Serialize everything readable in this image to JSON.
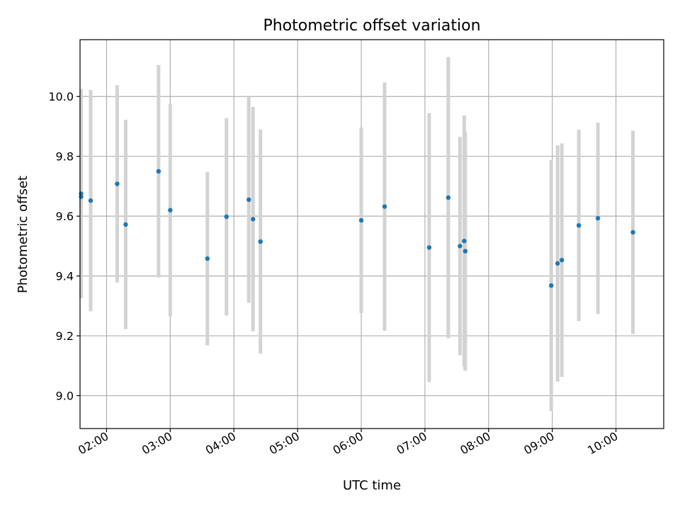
{
  "chart_data": {
    "type": "scatter",
    "title": "Photometric offset variation",
    "xlabel": "UTC time",
    "ylabel": "Photometric offset",
    "x_format": "HH:MM",
    "xlim": [
      "01:35",
      "10:45"
    ],
    "ylim": [
      8.89,
      10.19
    ],
    "x_ticks": [
      "02:00",
      "03:00",
      "04:00",
      "05:00",
      "06:00",
      "07:00",
      "08:00",
      "09:00",
      "10:00"
    ],
    "y_ticks": [
      "9.0",
      "9.2",
      "9.4",
      "9.6",
      "9.8",
      "10.0"
    ],
    "grid": true,
    "marker_color": "#1f77b4",
    "errorbar_color": "#d3d3d3",
    "points": [
      {
        "x": "01:36",
        "y": 9.675,
        "err": 0.35
      },
      {
        "x": "01:36",
        "y": 9.665,
        "err": 0.32
      },
      {
        "x": "01:45",
        "y": 9.652,
        "err": 0.37
      },
      {
        "x": "02:10",
        "y": 9.708,
        "err": 0.33
      },
      {
        "x": "02:18",
        "y": 9.572,
        "err": 0.35
      },
      {
        "x": "02:49",
        "y": 9.75,
        "err": 0.355
      },
      {
        "x": "03:00",
        "y": 9.62,
        "err": 0.355
      },
      {
        "x": "03:35",
        "y": 9.458,
        "err": 0.29
      },
      {
        "x": "03:53",
        "y": 9.598,
        "err": 0.33
      },
      {
        "x": "04:14",
        "y": 9.655,
        "err": 0.345
      },
      {
        "x": "04:18",
        "y": 9.59,
        "err": 0.375
      },
      {
        "x": "04:25",
        "y": 9.515,
        "err": 0.375
      },
      {
        "x": "06:00",
        "y": 9.586,
        "err": 0.31
      },
      {
        "x": "06:22",
        "y": 9.632,
        "err": 0.415
      },
      {
        "x": "07:04",
        "y": 9.495,
        "err": 0.45
      },
      {
        "x": "07:22",
        "y": 9.662,
        "err": 0.47
      },
      {
        "x": "07:33",
        "y": 9.5,
        "err": 0.365
      },
      {
        "x": "07:37",
        "y": 9.517,
        "err": 0.42
      },
      {
        "x": "07:38",
        "y": 9.483,
        "err": 0.4
      },
      {
        "x": "08:59",
        "y": 9.368,
        "err": 0.42
      },
      {
        "x": "09:05",
        "y": 9.442,
        "err": 0.395
      },
      {
        "x": "09:09",
        "y": 9.453,
        "err": 0.39
      },
      {
        "x": "09:25",
        "y": 9.569,
        "err": 0.32
      },
      {
        "x": "09:43",
        "y": 9.593,
        "err": 0.32
      },
      {
        "x": "10:16",
        "y": 9.546,
        "err": 0.34
      }
    ]
  }
}
